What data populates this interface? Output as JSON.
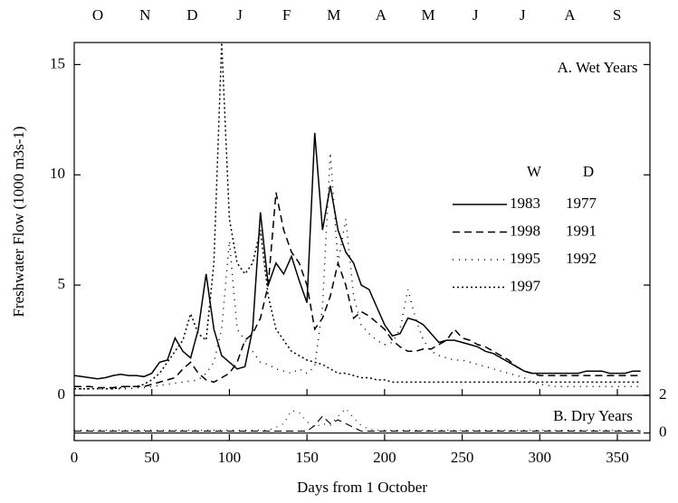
{
  "chart_data": [
    {
      "type": "line",
      "title": "A. Wet Years",
      "xlabel": "Days from 1 October",
      "ylabel": "Freshwater Flow (1000 m3s-1)",
      "months": [
        "O",
        "N",
        "D",
        "J",
        "F",
        "M",
        "A",
        "M",
        "J",
        "J",
        "A",
        "S"
      ],
      "legend_title": "W",
      "xlim": [
        0,
        371
      ],
      "xticks": [
        0,
        50,
        100,
        150,
        200,
        250,
        300,
        350
      ],
      "ylim": [
        0,
        16
      ],
      "yticks": [
        0,
        5,
        10,
        15
      ],
      "x": [
        0,
        5,
        10,
        15,
        20,
        25,
        30,
        35,
        40,
        45,
        50,
        55,
        60,
        65,
        70,
        75,
        80,
        85,
        90,
        95,
        100,
        105,
        110,
        115,
        120,
        125,
        130,
        135,
        140,
        145,
        150,
        155,
        160,
        165,
        170,
        175,
        180,
        185,
        190,
        195,
        200,
        205,
        210,
        215,
        220,
        225,
        230,
        235,
        240,
        245,
        250,
        255,
        260,
        265,
        270,
        275,
        280,
        285,
        290,
        295,
        300,
        305,
        310,
        315,
        320,
        325,
        330,
        335,
        340,
        345,
        350,
        355,
        360,
        365
      ],
      "series": [
        {
          "name": "1983",
          "color": "#000000",
          "dash": "solid",
          "values": [
            0.9,
            0.85,
            0.8,
            0.75,
            0.8,
            0.9,
            0.95,
            0.9,
            0.9,
            0.85,
            1.0,
            1.5,
            1.6,
            2.6,
            2.0,
            1.7,
            3.0,
            5.5,
            3.0,
            1.8,
            1.5,
            1.2,
            1.3,
            3.0,
            8.3,
            5.0,
            6.0,
            5.5,
            6.3,
            5.2,
            4.2,
            11.9,
            7.5,
            9.5,
            7.5,
            6.5,
            6.0,
            5.0,
            4.8,
            4.0,
            3.2,
            2.7,
            2.8,
            3.5,
            3.4,
            3.2,
            2.8,
            2.4,
            2.5,
            2.5,
            2.4,
            2.3,
            2.2,
            2.0,
            1.9,
            1.7,
            1.5,
            1.3,
            1.1,
            1.0,
            1.0,
            1.0,
            1.0,
            1.0,
            1.0,
            1.0,
            1.1,
            1.1,
            1.1,
            1.0,
            1.0,
            1.0,
            1.1,
            1.1
          ]
        },
        {
          "name": "1998",
          "color": "#000000",
          "dash": "dashed",
          "values": [
            0.4,
            0.4,
            0.4,
            0.35,
            0.35,
            0.35,
            0.4,
            0.4,
            0.4,
            0.4,
            0.5,
            0.6,
            0.7,
            0.8,
            1.2,
            1.5,
            1.0,
            0.7,
            0.6,
            0.8,
            1.0,
            1.5,
            2.5,
            2.8,
            3.5,
            5.0,
            9.2,
            7.5,
            6.5,
            6.0,
            5.0,
            3.0,
            3.5,
            4.5,
            6.0,
            5.0,
            3.5,
            3.8,
            3.6,
            3.3,
            3.0,
            2.5,
            2.2,
            2.0,
            2.0,
            2.1,
            2.1,
            2.3,
            2.5,
            3.0,
            2.6,
            2.5,
            2.3,
            2.2,
            2.0,
            1.8,
            1.6,
            1.3,
            1.1,
            1.0,
            0.9,
            0.9,
            0.9,
            0.9,
            0.9,
            0.9,
            0.9,
            0.9,
            0.9,
            0.9,
            0.9,
            0.9,
            0.9,
            0.9
          ]
        },
        {
          "name": "1995",
          "color": "#000000",
          "dash": "dotted",
          "values": [
            0.3,
            0.3,
            0.3,
            0.3,
            0.3,
            0.3,
            0.3,
            0.3,
            0.35,
            0.35,
            0.4,
            0.45,
            0.5,
            0.55,
            0.6,
            0.65,
            0.7,
            1.0,
            1.5,
            3.0,
            7.0,
            3.0,
            2.5,
            2.0,
            1.5,
            1.4,
            1.2,
            1.1,
            1.0,
            1.2,
            1.0,
            1.3,
            4.0,
            11.0,
            6.0,
            8.0,
            4.5,
            3.2,
            2.8,
            2.5,
            2.3,
            2.4,
            3.0,
            4.8,
            3.5,
            2.5,
            2.0,
            1.8,
            1.7,
            1.6,
            1.6,
            1.5,
            1.4,
            1.3,
            1.2,
            1.1,
            1.0,
            0.9,
            0.8,
            0.6,
            0.5,
            0.45,
            0.4,
            0.4,
            0.4,
            0.4,
            0.4,
            0.4,
            0.4,
            0.4,
            0.4,
            0.4,
            0.4,
            0.4
          ]
        },
        {
          "name": "1997",
          "color": "#000000",
          "dash": "densely-dotted",
          "values": [
            0.3,
            0.3,
            0.3,
            0.3,
            0.3,
            0.3,
            0.35,
            0.4,
            0.4,
            0.5,
            0.7,
            1.0,
            1.5,
            2.0,
            2.5,
            3.7,
            2.8,
            2.5,
            6.0,
            16.0,
            8.0,
            6.0,
            5.5,
            6.0,
            7.5,
            4.5,
            3.0,
            2.5,
            2.0,
            1.8,
            1.6,
            1.5,
            1.4,
            1.2,
            1.0,
            1.0,
            0.9,
            0.8,
            0.8,
            0.7,
            0.7,
            0.6,
            0.6,
            0.6,
            0.6,
            0.6,
            0.6,
            0.6,
            0.6,
            0.6,
            0.6,
            0.6,
            0.6,
            0.6,
            0.6,
            0.6,
            0.6,
            0.6,
            0.6,
            0.6,
            0.6,
            0.6,
            0.6,
            0.6,
            0.6,
            0.6,
            0.6,
            0.6,
            0.6,
            0.6,
            0.6,
            0.6,
            0.6,
            0.6
          ]
        }
      ]
    },
    {
      "type": "line",
      "title": "B. Dry Years",
      "legend_title": "D",
      "xlim": [
        0,
        371
      ],
      "ylim": [
        -0.4,
        2
      ],
      "yticks": [
        0,
        2
      ],
      "x": [
        0,
        5,
        10,
        15,
        20,
        25,
        30,
        35,
        40,
        45,
        50,
        55,
        60,
        65,
        70,
        75,
        80,
        85,
        90,
        95,
        100,
        105,
        110,
        115,
        120,
        125,
        130,
        135,
        140,
        145,
        150,
        155,
        160,
        165,
        170,
        175,
        180,
        185,
        190,
        195,
        200,
        205,
        210,
        215,
        220,
        225,
        230,
        235,
        240,
        245,
        250,
        255,
        260,
        265,
        270,
        275,
        280,
        285,
        290,
        295,
        300,
        305,
        310,
        315,
        320,
        325,
        330,
        335,
        340,
        345,
        350,
        355,
        360,
        365
      ],
      "series": [
        {
          "name": "1977",
          "color": "#000000",
          "dash": "solid",
          "values": [
            0,
            0,
            0,
            0,
            0,
            0,
            0,
            0,
            0,
            0,
            0,
            0,
            0,
            0,
            0,
            0,
            0,
            0,
            0,
            0,
            0,
            0,
            0,
            0,
            0,
            0,
            0,
            0,
            0,
            0,
            0,
            0,
            0,
            0,
            0,
            0,
            0,
            0,
            0,
            0,
            0,
            0,
            0,
            0,
            0,
            0,
            0,
            0,
            0,
            0,
            0,
            0,
            0,
            0,
            0,
            0,
            0,
            0,
            0,
            0,
            0,
            0,
            0,
            0,
            0,
            0,
            0,
            0,
            0,
            0,
            0,
            0,
            0,
            0
          ]
        },
        {
          "name": "1991",
          "color": "#000000",
          "dash": "dashed",
          "values": [
            0.1,
            0.1,
            0.1,
            0.1,
            0.1,
            0.1,
            0.1,
            0.1,
            0.1,
            0.1,
            0.1,
            0.1,
            0.1,
            0.1,
            0.1,
            0.1,
            0.1,
            0.1,
            0.1,
            0.1,
            0.1,
            0.1,
            0.1,
            0.1,
            0.1,
            0.1,
            0.1,
            0.1,
            0.1,
            0.1,
            0.1,
            0.4,
            0.9,
            0.5,
            0.7,
            0.5,
            0.3,
            0.1,
            0.1,
            0.1,
            0.1,
            0.1,
            0.1,
            0.1,
            0.1,
            0.1,
            0.1,
            0.1,
            0.1,
            0.1,
            0.1,
            0.1,
            0.1,
            0.1,
            0.1,
            0.1,
            0.1,
            0.1,
            0.1,
            0.1,
            0.1,
            0.1,
            0.1,
            0.1,
            0.1,
            0.1,
            0.1,
            0.1,
            0.1,
            0.1,
            0.1,
            0.1,
            0.1,
            0.1
          ]
        },
        {
          "name": "1992",
          "color": "#000000",
          "dash": "dotted",
          "values": [
            0.15,
            0.15,
            0.15,
            0.15,
            0.15,
            0.15,
            0.15,
            0.15,
            0.15,
            0.15,
            0.15,
            0.15,
            0.15,
            0.15,
            0.15,
            0.15,
            0.15,
            0.15,
            0.15,
            0.15,
            0.15,
            0.15,
            0.15,
            0.15,
            0.15,
            0.15,
            0.3,
            0.5,
            1.2,
            1.1,
            0.6,
            0.3,
            0.5,
            0.4,
            0.9,
            1.3,
            0.8,
            0.4,
            0.2,
            0.15,
            0.15,
            0.15,
            0.15,
            0.15,
            0.15,
            0.15,
            0.15,
            0.15,
            0.15,
            0.15,
            0.15,
            0.15,
            0.15,
            0.15,
            0.15,
            0.15,
            0.15,
            0.15,
            0.15,
            0.15,
            0.15,
            0.15,
            0.15,
            0.15,
            0.15,
            0.15,
            0.15,
            0.15,
            0.15,
            0.15,
            0.15,
            0.15,
            0.15,
            0.15
          ]
        }
      ]
    }
  ]
}
